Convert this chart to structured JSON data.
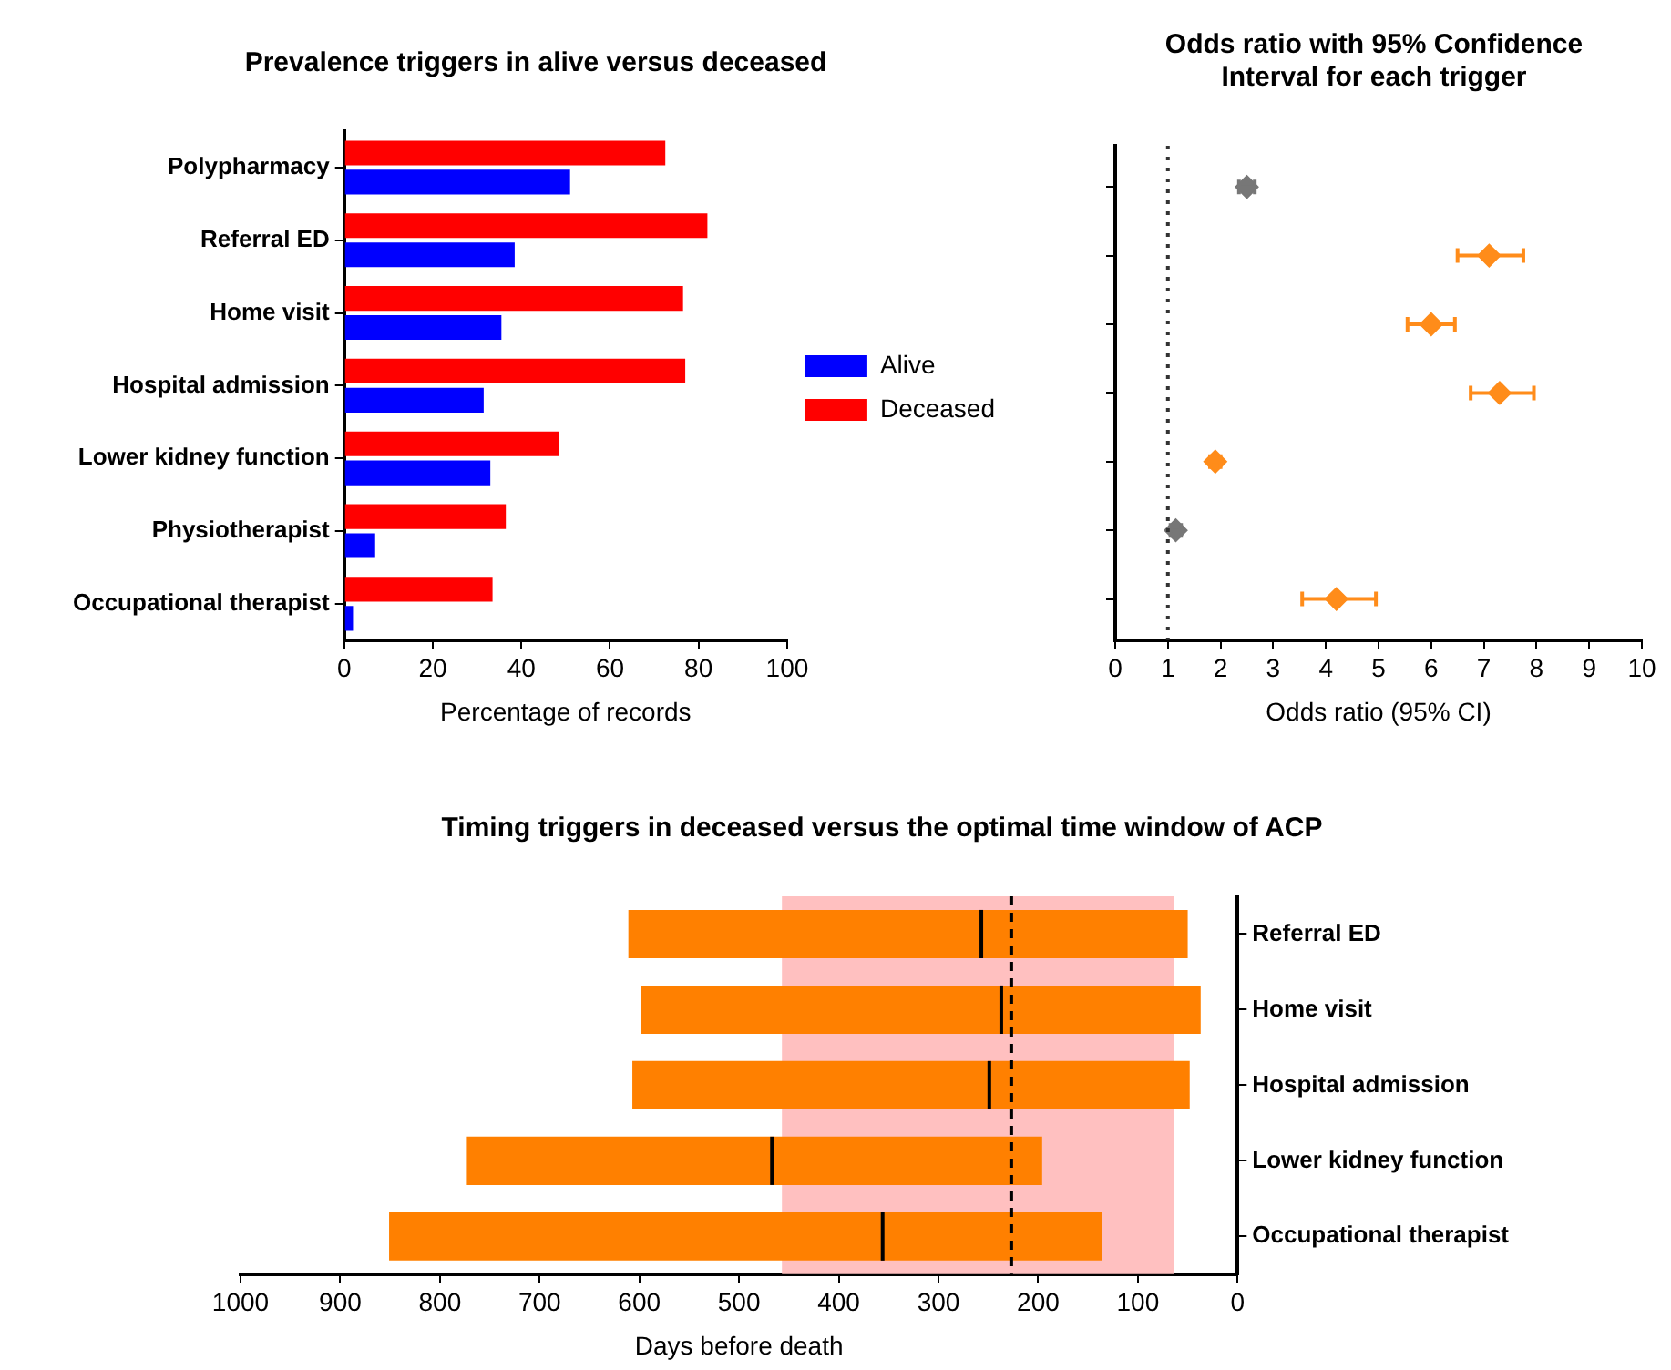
{
  "chart_data": [
    {
      "type": "bar",
      "orientation": "horizontal",
      "title": "Prevalence triggers in alive versus deceased",
      "xlabel": "Percentage of records",
      "categories": [
        "Polypharmacy",
        "Referral ED",
        "Home visit",
        "Hospital admission",
        "Lower kidney function",
        "Physiotherapist",
        "Occupational therapist"
      ],
      "series": [
        {
          "name": "Deceased",
          "color": "#ff0000",
          "values": [
            72.5,
            82,
            76.5,
            77,
            48.5,
            36.5,
            33.5
          ]
        },
        {
          "name": "Alive",
          "color": "#0000ff",
          "values": [
            51,
            38.5,
            35.5,
            31.5,
            33,
            7,
            2
          ]
        }
      ],
      "xlim": [
        0,
        100
      ],
      "xticks": [
        0,
        20,
        40,
        60,
        80,
        100
      ],
      "grid": false,
      "legend": "right"
    },
    {
      "type": "scatter",
      "orientation": "horizontal",
      "title": "Odds ratio with 95% Confidence Interval for each trigger",
      "xlabel": "Odds ratio (95% CI)",
      "categories": [
        null,
        null,
        null,
        null,
        null,
        null,
        null
      ],
      "values": [
        2.5,
        7.1,
        6.0,
        7.3,
        1.9,
        1.15,
        4.2
      ],
      "errors": [
        [
          2.35,
          2.65
        ],
        [
          6.5,
          7.75
        ],
        [
          5.55,
          6.45
        ],
        [
          6.75,
          7.95
        ],
        [
          1.8,
          2.0
        ],
        [
          1.05,
          1.25
        ],
        [
          3.55,
          4.95
        ]
      ],
      "colors": [
        "#777777",
        "#ff8c1a",
        "#ff8c1a",
        "#ff8c1a",
        "#ff8c1a",
        "#777777",
        "#ff8c1a"
      ],
      "marker": "diamond",
      "xlim": [
        0,
        10
      ],
      "xticks": [
        0,
        1,
        2,
        3,
        4,
        5,
        6,
        7,
        8,
        9,
        10
      ],
      "grid": false,
      "tick_labels": "x",
      "ref_lines": [
        {
          "axis": "x",
          "value": 1,
          "line_style": "dotted",
          "color": "#333333"
        }
      ]
    },
    {
      "type": "box",
      "orientation": "horizontal",
      "title": "Timing triggers in deceased versus the optimal time window of ACP",
      "xlabel": "Days before death",
      "categories": [
        "Referral ED",
        "Home visit",
        "Hospital admission",
        "Lower kidney function",
        "Occupational therapist"
      ],
      "boxes": [
        {
          "low": 50,
          "q1": 50,
          "median": 257,
          "q3": 611,
          "high": 611
        },
        {
          "low": 37,
          "q1": 37,
          "median": 237,
          "q3": 598,
          "high": 598
        },
        {
          "low": 48,
          "q1": 48,
          "median": 249,
          "q3": 607,
          "high": 607
        },
        {
          "low": 196,
          "q1": 196,
          "median": 467,
          "q3": 773,
          "high": 773
        },
        {
          "low": 136,
          "q1": 136,
          "median": 356,
          "q3": 851,
          "high": 851
        }
      ],
      "color": "#ff8000",
      "xlim": [
        1000,
        0
      ],
      "xticks": [
        0,
        100,
        200,
        300,
        400,
        500,
        600,
        700,
        800,
        900,
        1000
      ],
      "grid": false,
      "bands": [
        {
          "axis": "x",
          "from": 457,
          "to": 64,
          "color": "#ffc0c0"
        }
      ],
      "ref_lines": [
        {
          "axis": "x",
          "value": 227,
          "line_style": "dashed",
          "color": "#000000"
        }
      ]
    }
  ]
}
